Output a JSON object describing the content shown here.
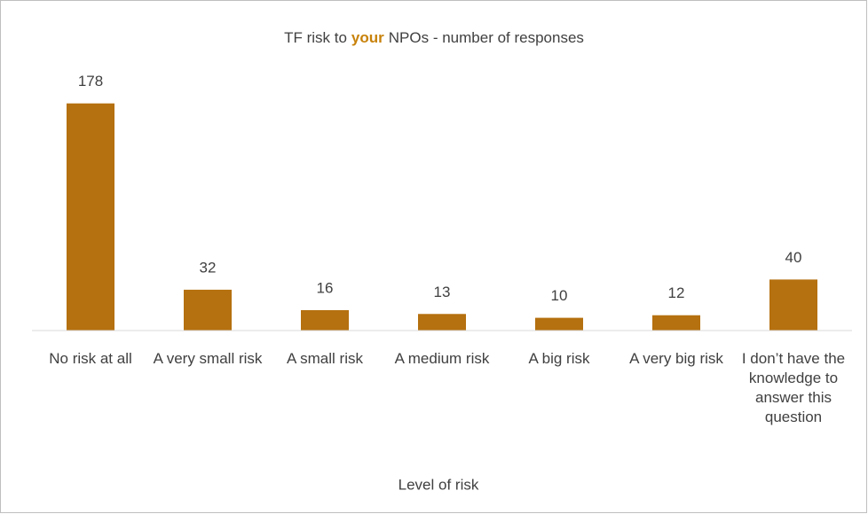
{
  "chart_data": {
    "type": "bar",
    "title": [
      {
        "text": "TF risk to"
      },
      {
        "text": "your",
        "color": "#c8820a"
      },
      {
        "text": "NPOs - number of responses"
      }
    ],
    "x_label": "Level of risk",
    "categories": [
      "No risk at all",
      "A very small risk",
      "A small risk",
      "A medium risk",
      "A big risk",
      "A very big risk",
      "I don’t have the knowledge to answer this question"
    ],
    "values": [
      178,
      32,
      16,
      13,
      10,
      12,
      40
    ],
    "color": "#b5700f",
    "ylim": [
      0,
      200
    ]
  }
}
